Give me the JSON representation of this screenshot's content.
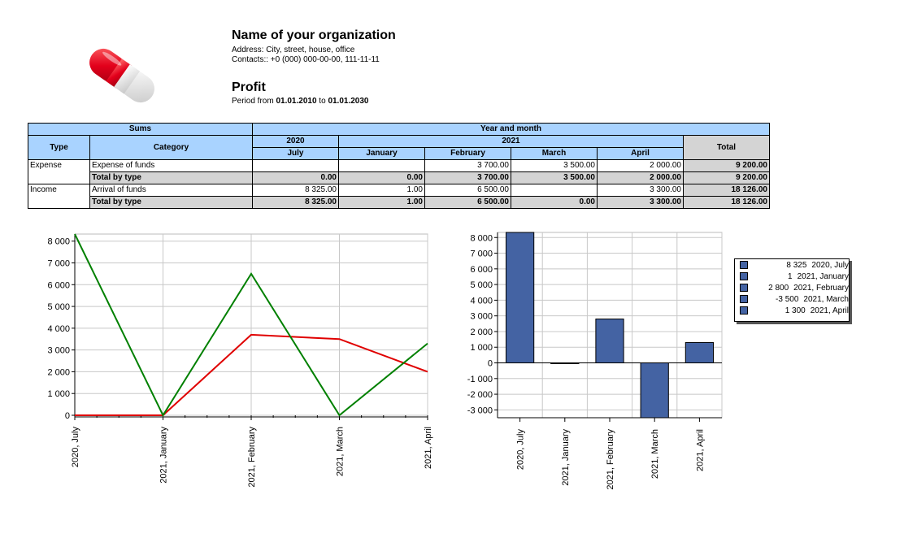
{
  "header": {
    "org_name": "Name of your organization",
    "address": "Address: City, street, house, office",
    "contacts": "Contacts:: +0 (000) 000-00-00, 111-11-11",
    "title": "Profit",
    "period_prefix": "Period from ",
    "period_from": "01.01.2010",
    "period_mid": " to ",
    "period_to": "01.01.2030"
  },
  "colors": {
    "header_bg": "#a9d3ff",
    "total_bg": "#d4d4d4",
    "bar": "#4463a3",
    "line_expense": "#e00000",
    "line_income": "#008000"
  },
  "table": {
    "sums_label": "Sums",
    "year_month_label": "Year and month",
    "type_label": "Type",
    "category_label": "Category",
    "total_label": "Total",
    "year_2020": "2020",
    "year_2021": "2021",
    "months": [
      "July",
      "January",
      "February",
      "March",
      "April"
    ],
    "rows": [
      {
        "type": "Expense",
        "category": "Expense of funds",
        "values": [
          "",
          "",
          "3 700.00",
          "3 500.00",
          "2 000.00"
        ],
        "total": "9 200.00"
      },
      {
        "type": "",
        "category": "Total by type",
        "values": [
          "0.00",
          "0.00",
          "3 700.00",
          "3 500.00",
          "2 000.00"
        ],
        "total": "9 200.00"
      },
      {
        "type": "Income",
        "category": "Arrival of funds",
        "values": [
          "8 325.00",
          "1.00",
          "6 500.00",
          "",
          "3 300.00"
        ],
        "total": "18 126.00"
      },
      {
        "type": "",
        "category": "Total by type",
        "values": [
          "8 325.00",
          "1.00",
          "6 500.00",
          "0.00",
          "3 300.00"
        ],
        "total": "18 126.00"
      }
    ]
  },
  "chart_data": [
    {
      "type": "line",
      "x": [
        "2020, July",
        "2021, January",
        "2021, February",
        "2021, March",
        "2021, April"
      ],
      "series": [
        {
          "values": [
            0,
            0,
            3700,
            3500,
            2000
          ],
          "color": "#e00000"
        },
        {
          "values": [
            8325,
            1,
            6500,
            0,
            3300
          ],
          "color": "#008000"
        }
      ],
      "ylim": [
        0,
        8325
      ],
      "yticks": [
        "0",
        "1 000",
        "2 000",
        "3 000",
        "4 000",
        "5 000",
        "6 000",
        "7 000",
        "8 000"
      ],
      "grid": true
    },
    {
      "type": "bar",
      "categories": [
        "2020, July",
        "2021, January",
        "2021, February",
        "2021, March",
        "2021, April"
      ],
      "values": [
        8325,
        1,
        2800,
        -3500,
        1300
      ],
      "ylim": [
        -3500,
        8325
      ],
      "yticks": [
        "-3 000",
        "-2 000",
        "-1 000",
        "0",
        "1 000",
        "2 000",
        "3 000",
        "4 000",
        "5 000",
        "6 000",
        "7 000",
        "8 000"
      ],
      "grid": true,
      "legend": [
        {
          "value": "8 325",
          "label": "2020, July"
        },
        {
          "value": "1",
          "label": "2021, January"
        },
        {
          "value": "2 800",
          "label": "2021, February"
        },
        {
          "value": "-3 500",
          "label": "2021, March"
        },
        {
          "value": "1 300",
          "label": "2021, April"
        }
      ],
      "legend_position": "right"
    }
  ]
}
